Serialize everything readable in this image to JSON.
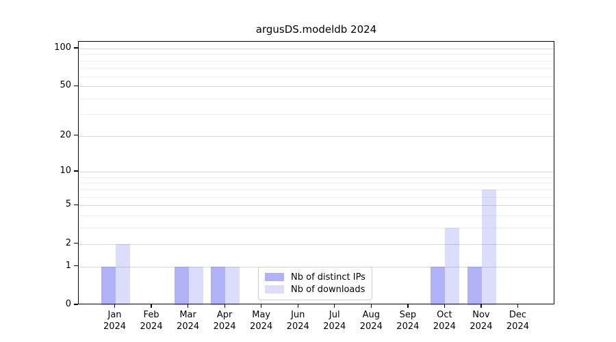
{
  "title": "argusDS.modeldb 2024",
  "chart_data": {
    "type": "bar",
    "title": "argusDS.modeldb 2024",
    "xlabel": "",
    "ylabel": "",
    "year": "2024",
    "categories": [
      "Jan",
      "Feb",
      "Mar",
      "Apr",
      "May",
      "Jun",
      "Jul",
      "Aug",
      "Sep",
      "Oct",
      "Nov",
      "Dec"
    ],
    "series": [
      {
        "name": "Nb of distinct IPs",
        "values": [
          1,
          0,
          1,
          1,
          0,
          0,
          0,
          0,
          0,
          1,
          1,
          0
        ],
        "color": "rgba(70,70,235,0.42)",
        "solid_color": "#acacf6"
      },
      {
        "name": "Nb of downloads",
        "values": [
          2,
          0,
          1,
          1,
          0,
          0,
          0,
          0,
          0,
          3,
          7,
          0
        ],
        "color": "rgba(70,70,235,0.19)",
        "solid_color": "#d9d9fa"
      }
    ],
    "y_axis": {
      "scale": "log10(1+y)",
      "major_ticks": [
        0,
        1,
        2,
        5,
        10,
        20,
        50,
        100
      ],
      "minor_ticks": [
        3,
        4,
        6,
        7,
        8,
        9,
        30,
        40,
        60,
        70,
        80,
        90
      ],
      "ymin": 0,
      "ymax": 113
    },
    "legend": {
      "position": "bottom-center",
      "entries": [
        "Nb of distinct IPs",
        "Nb of downloads"
      ]
    },
    "grid": true,
    "grid_major_color": "#d8d8d8",
    "grid_minor_color": "#efefef",
    "spine_color": "#000000",
    "background_color": "#ffffff"
  }
}
